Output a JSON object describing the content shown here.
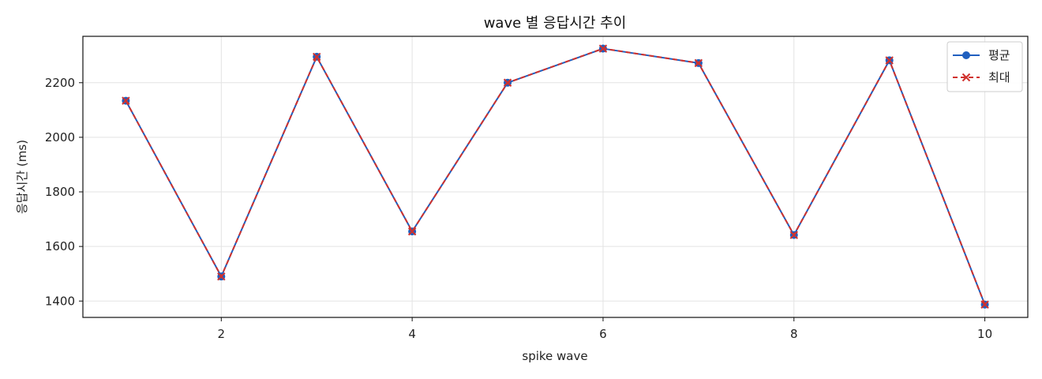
{
  "chart_data": {
    "type": "line",
    "title": "wave 별 응답시간 추이",
    "xlabel": "spike wave",
    "ylabel": "응답시간 (ms)",
    "x": [
      1,
      2,
      3,
      4,
      5,
      6,
      7,
      8,
      9,
      10
    ],
    "xlim": [
      0.55,
      10.45
    ],
    "ylim": [
      1340,
      2370
    ],
    "x_ticks": [
      2,
      4,
      6,
      8,
      10
    ],
    "y_ticks": [
      1400,
      1600,
      1800,
      2000,
      2200
    ],
    "grid": true,
    "legend_position": "top-right",
    "series": [
      {
        "name": "평균",
        "color": "#1f5fbf",
        "line_style": "solid",
        "marker": "circle",
        "values": [
          2134,
          1490,
          2295,
          1655,
          2200,
          2325,
          2272,
          1642,
          2282,
          1387
        ]
      },
      {
        "name": "최대",
        "color": "#d0312d",
        "line_style": "dashed",
        "marker": "x",
        "values": [
          2134,
          1490,
          2295,
          1655,
          2200,
          2325,
          2272,
          1642,
          2282,
          1387
        ]
      }
    ]
  }
}
